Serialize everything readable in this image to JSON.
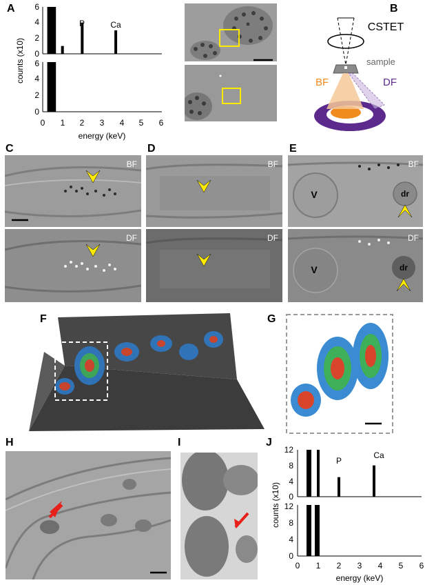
{
  "panel_labels": {
    "A": "A",
    "B": "B",
    "C": "C",
    "D": "D",
    "E": "E",
    "F": "F",
    "G": "G",
    "H": "H",
    "I": "I",
    "J": "J"
  },
  "panel_a": {
    "ylabel": "counts (x10)",
    "xlabel": "energy (keV)",
    "peak_P": "P",
    "peak_Ca": "Ca",
    "xticks": [
      "0",
      "1",
      "2",
      "3",
      "4",
      "5",
      "6"
    ],
    "yticks": [
      "0",
      "2",
      "4",
      "6"
    ]
  },
  "panel_b": {
    "title": "CSTET",
    "sample": "sample",
    "bf": "BF",
    "df": "DF"
  },
  "panel_c": {
    "bf": "BF",
    "df": "DF"
  },
  "panel_d": {
    "bf": "BF",
    "df": "DF"
  },
  "panel_e": {
    "bf": "BF",
    "df": "DF",
    "v_top": "V",
    "dr_top": "dr",
    "v_bot": "V",
    "dr_bot": "dr"
  },
  "panel_j": {
    "ylabel": "counts (x10)",
    "xlabel": "energy (keV)",
    "peak_P": "P",
    "peak_Ca": "Ca",
    "xticks": [
      "0",
      "1",
      "2",
      "3",
      "4",
      "5",
      "6"
    ],
    "yticks": [
      "0",
      "4",
      "8",
      "12"
    ]
  },
  "chart_data": [
    {
      "type": "bar",
      "panel": "A-top",
      "xlabel": "energy (keV)",
      "ylabel": "counts (x10)",
      "xlim": [
        0,
        6
      ],
      "ylim": [
        0,
        6
      ],
      "x": [
        0.3,
        0.4,
        0.5,
        0.6,
        1.0,
        2.0,
        3.7
      ],
      "values": [
        6,
        6,
        6,
        6,
        1,
        4,
        3
      ]
    },
    {
      "type": "bar",
      "panel": "A-bottom",
      "xlabel": "energy (keV)",
      "ylabel": "counts (x10)",
      "xlim": [
        0,
        6
      ],
      "ylim": [
        0,
        6
      ],
      "x": [
        0.3,
        0.4,
        0.5,
        0.6
      ],
      "values": [
        6,
        6,
        6,
        6
      ]
    },
    {
      "type": "bar",
      "panel": "J-top",
      "xlabel": "energy (keV)",
      "ylabel": "counts (x10)",
      "xlim": [
        0,
        6
      ],
      "ylim": [
        0,
        12
      ],
      "x": [
        0.5,
        0.6,
        1.0,
        2.0,
        3.7
      ],
      "values": [
        12,
        12,
        12,
        5,
        8
      ]
    },
    {
      "type": "bar",
      "panel": "J-bottom",
      "xlabel": "energy (keV)",
      "ylabel": "counts (x10)",
      "xlim": [
        0,
        6
      ],
      "ylim": [
        0,
        12
      ],
      "x": [
        0.5,
        0.6,
        0.9,
        1.0
      ],
      "values": [
        12,
        12,
        12,
        12
      ]
    }
  ]
}
